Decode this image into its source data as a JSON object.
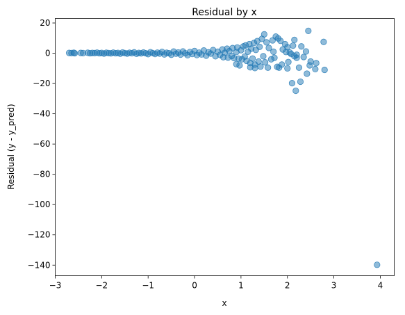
{
  "chart_data": {
    "type": "scatter",
    "title": "Residual by x",
    "xlabel": "x",
    "ylabel": "Residual (y - y_pred)",
    "xlim": [
      -3,
      4.3
    ],
    "ylim": [
      -147,
      23
    ],
    "xticks": [
      -3,
      -2,
      -1,
      0,
      1,
      2,
      3,
      4
    ],
    "yticks": [
      -140,
      -120,
      -100,
      -80,
      -60,
      -40,
      -20,
      0,
      20
    ],
    "grid": false,
    "legend": "none",
    "marker_color": "#1f77b4",
    "marker_alpha": 0.5,
    "series": [
      {
        "points": [
          [
            -2.7,
            0.2
          ],
          [
            -2.65,
            0.1
          ],
          [
            -2.6,
            0.3
          ],
          [
            -2.58,
            0.0
          ],
          [
            -2.45,
            0.2
          ],
          [
            -2.4,
            0.1
          ],
          [
            -2.3,
            0.3
          ],
          [
            -2.25,
            0.0
          ],
          [
            -2.2,
            0.2
          ],
          [
            -2.15,
            0.1
          ],
          [
            -2.1,
            0.4
          ],
          [
            -2.05,
            0.0
          ],
          [
            -2.0,
            0.2
          ],
          [
            -1.95,
            -0.2
          ],
          [
            -1.9,
            0.3
          ],
          [
            -1.85,
            0.1
          ],
          [
            -1.8,
            -0.1
          ],
          [
            -1.75,
            0.4
          ],
          [
            -1.7,
            0.0
          ],
          [
            -1.65,
            0.2
          ],
          [
            -1.6,
            -0.3
          ],
          [
            -1.55,
            0.5
          ],
          [
            -1.5,
            0.1
          ],
          [
            -1.45,
            -0.2
          ],
          [
            -1.4,
            0.3
          ],
          [
            -1.35,
            0.0
          ],
          [
            -1.3,
            0.6
          ],
          [
            -1.25,
            -0.4
          ],
          [
            -1.2,
            0.2
          ],
          [
            -1.15,
            -0.1
          ],
          [
            -1.1,
            0.5
          ],
          [
            -1.05,
            0.0
          ],
          [
            -1.0,
            -0.6
          ],
          [
            -0.95,
            0.7
          ],
          [
            -0.9,
            0.1
          ],
          [
            -0.85,
            -0.5
          ],
          [
            -0.8,
            0.4
          ],
          [
            -0.75,
            -0.2
          ],
          [
            -0.7,
            0.9
          ],
          [
            -0.65,
            -0.8
          ],
          [
            -0.6,
            0.3
          ],
          [
            -0.55,
            0.0
          ],
          [
            -0.5,
            -1.0
          ],
          [
            -0.45,
            1.1
          ],
          [
            -0.4,
            -0.3
          ],
          [
            -0.35,
            0.5
          ],
          [
            -0.3,
            -0.9
          ],
          [
            -0.25,
            1.2
          ],
          [
            -0.2,
            0.0
          ],
          [
            -0.15,
            -1.3
          ],
          [
            -0.1,
            0.8
          ],
          [
            -0.05,
            -0.5
          ],
          [
            0.0,
            1.5
          ],
          [
            0.05,
            -1.2
          ],
          [
            0.1,
            0.4
          ],
          [
            0.15,
            -0.8
          ],
          [
            0.2,
            1.8
          ],
          [
            0.25,
            -1.6
          ],
          [
            0.3,
            0.6
          ],
          [
            0.35,
            -0.2
          ],
          [
            0.4,
            2.1
          ],
          [
            0.45,
            -2.0
          ],
          [
            0.5,
            1.0
          ],
          [
            0.55,
            -1.1
          ],
          [
            0.6,
            2.5
          ],
          [
            0.62,
            -2.6
          ],
          [
            0.65,
            0.3
          ],
          [
            0.7,
            3.0
          ],
          [
            0.72,
            -2.9
          ],
          [
            0.75,
            1.4
          ],
          [
            0.8,
            -1.8
          ],
          [
            0.82,
            3.4
          ],
          [
            0.85,
            -3.2
          ],
          [
            0.9,
            0.8
          ],
          [
            0.92,
            3.8
          ],
          [
            0.95,
            -3.6
          ],
          [
            1.0,
            2.0
          ],
          [
            1.02,
            -4.0
          ],
          [
            1.05,
            4.5
          ],
          [
            1.08,
            -2.2
          ],
          [
            1.1,
            5.2
          ],
          [
            1.12,
            -5.0
          ],
          [
            1.15,
            1.0
          ],
          [
            1.18,
            6.0
          ],
          [
            1.2,
            -6.5
          ],
          [
            1.22,
            3.0
          ],
          [
            1.25,
            -3.5
          ],
          [
            1.28,
            6.8
          ],
          [
            1.3,
            -7.5
          ],
          [
            1.32,
            2.2
          ],
          [
            1.35,
            8.0
          ],
          [
            1.38,
            -5.5
          ],
          [
            1.4,
            4.2
          ],
          [
            1.42,
            -8.8
          ],
          [
            1.45,
            9.5
          ],
          [
            1.48,
            -2.0
          ],
          [
            1.5,
            12.5
          ],
          [
            1.52,
            -6.0
          ],
          [
            1.55,
            7.2
          ],
          [
            1.58,
            -9.5
          ],
          [
            1.2,
            -9.3
          ],
          [
            1.3,
            -9.8
          ],
          [
            0.9,
            -7.2
          ],
          [
            0.97,
            -8.0
          ],
          [
            1.6,
            3.5
          ],
          [
            1.65,
            -4.0
          ],
          [
            1.68,
            8.5
          ],
          [
            1.7,
            1.0
          ],
          [
            1.72,
            -3.0
          ],
          [
            1.75,
            11.0
          ],
          [
            1.78,
            -9.0
          ],
          [
            1.8,
            9.8
          ],
          [
            1.82,
            -9.5
          ],
          [
            1.85,
            8.2
          ],
          [
            1.88,
            -7.5
          ],
          [
            1.9,
            2.5
          ],
          [
            1.95,
            6.0
          ],
          [
            2.0,
            -10.0
          ],
          [
            2.05,
            0.5
          ],
          [
            2.08,
            -0.5
          ],
          [
            2.1,
            -19.8
          ],
          [
            2.12,
            5.0
          ],
          [
            2.15,
            8.8
          ],
          [
            2.18,
            -24.8
          ],
          [
            2.2,
            -3.0
          ],
          [
            2.25,
            -9.5
          ],
          [
            2.28,
            -18.8
          ],
          [
            2.3,
            4.5
          ],
          [
            2.35,
            -2.5
          ],
          [
            2.4,
            1.2
          ],
          [
            2.42,
            -13.5
          ],
          [
            2.45,
            14.8
          ],
          [
            2.48,
            -8.0
          ],
          [
            2.5,
            -5.5
          ],
          [
            2.6,
            -10.5
          ],
          [
            2.62,
            -6.5
          ],
          [
            2.78,
            7.5
          ],
          [
            2.8,
            -11.0
          ],
          [
            2.15,
            -2.0
          ],
          [
            2.2,
            -1.0
          ],
          [
            2.0,
            4.0
          ],
          [
            2.02,
            -5.8
          ],
          [
            1.97,
            0.8
          ],
          [
            3.93,
            -139.8
          ]
        ]
      }
    ]
  }
}
